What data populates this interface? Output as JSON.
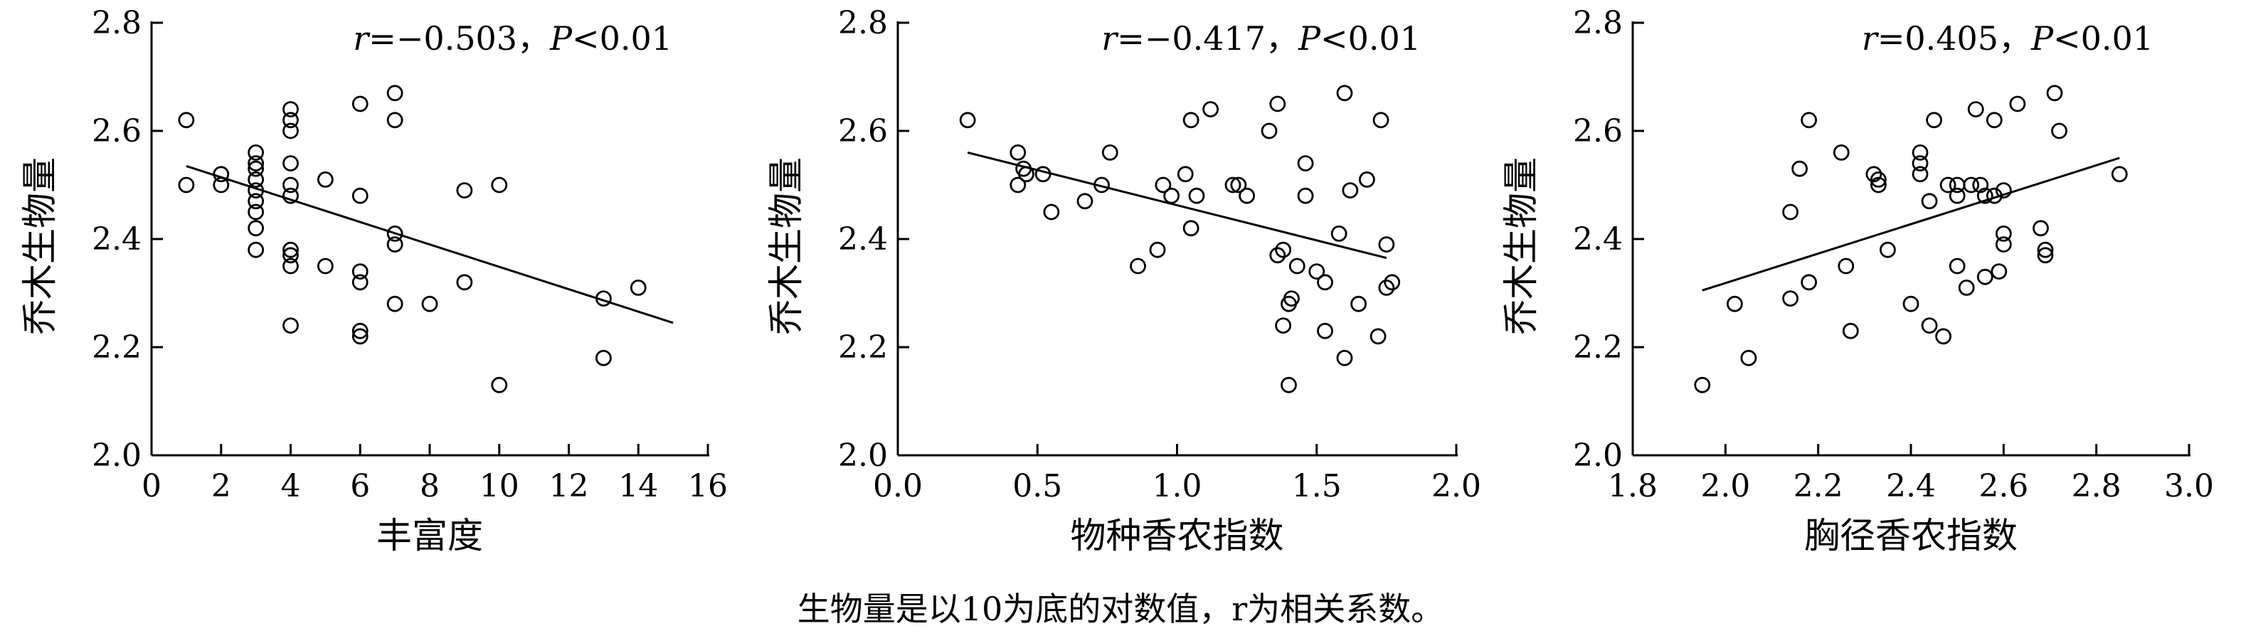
{
  "caption": "生物量是以10为底的对数值，r为相关系数。",
  "chart_data": [
    {
      "type": "scatter",
      "xlabel": "丰富度",
      "ylabel": "乔木生物量",
      "xlim": [
        0,
        16
      ],
      "ylim": [
        2.0,
        2.8
      ],
      "xticks": [
        0,
        2,
        4,
        6,
        8,
        10,
        12,
        14,
        16
      ],
      "yticks": [
        2.0,
        2.2,
        2.4,
        2.6,
        2.8
      ],
      "xdecimals": 0,
      "ydecimals": 1,
      "stat": {
        "r_symbol": "r",
        "r_text": "=−0.503，",
        "p_symbol": "P",
        "p_text": "<0.01"
      },
      "fit_line": [
        [
          1,
          2.535
        ],
        [
          15,
          2.245
        ]
      ],
      "points": [
        [
          1,
          2.62
        ],
        [
          1,
          2.5
        ],
        [
          2,
          2.52
        ],
        [
          2,
          2.5
        ],
        [
          3,
          2.56
        ],
        [
          3,
          2.53
        ],
        [
          3,
          2.51
        ],
        [
          3,
          2.49
        ],
        [
          3,
          2.47
        ],
        [
          3,
          2.45
        ],
        [
          3,
          2.42
        ],
        [
          3,
          2.38
        ],
        [
          3,
          2.54
        ],
        [
          4,
          2.64
        ],
        [
          4,
          2.62
        ],
        [
          4,
          2.6
        ],
        [
          4,
          2.54
        ],
        [
          4,
          2.5
        ],
        [
          4,
          2.48
        ],
        [
          4,
          2.38
        ],
        [
          4,
          2.37
        ],
        [
          4,
          2.35
        ],
        [
          4,
          2.24
        ],
        [
          5,
          2.51
        ],
        [
          5,
          2.35
        ],
        [
          6,
          2.65
        ],
        [
          6,
          2.48
        ],
        [
          6,
          2.34
        ],
        [
          6,
          2.32
        ],
        [
          6,
          2.23
        ],
        [
          6,
          2.22
        ],
        [
          7,
          2.67
        ],
        [
          7,
          2.62
        ],
        [
          7,
          2.41
        ],
        [
          7,
          2.39
        ],
        [
          7,
          2.28
        ],
        [
          8,
          2.28
        ],
        [
          9,
          2.49
        ],
        [
          9,
          2.32
        ],
        [
          10,
          2.5
        ],
        [
          10,
          2.13
        ],
        [
          13,
          2.29
        ],
        [
          13,
          2.18
        ],
        [
          14,
          2.31
        ]
      ]
    },
    {
      "type": "scatter",
      "xlabel": "物种香农指数",
      "ylabel": "乔木生物量",
      "xlim": [
        0,
        2.0
      ],
      "ylim": [
        2.0,
        2.8
      ],
      "xticks": [
        0,
        0.5,
        1.0,
        1.5,
        2.0
      ],
      "yticks": [
        2.0,
        2.2,
        2.4,
        2.6,
        2.8
      ],
      "xdecimals": 1,
      "ydecimals": 1,
      "stat": {
        "r_symbol": "r",
        "r_text": "=−0.417，",
        "p_symbol": "P",
        "p_text": "<0.01"
      },
      "fit_line": [
        [
          0.25,
          2.56
        ],
        [
          1.75,
          2.365
        ]
      ],
      "points": [
        [
          0.25,
          2.62
        ],
        [
          0.43,
          2.56
        ],
        [
          0.43,
          2.5
        ],
        [
          0.45,
          2.53
        ],
        [
          0.46,
          2.52
        ],
        [
          0.52,
          2.52
        ],
        [
          0.55,
          2.45
        ],
        [
          0.67,
          2.47
        ],
        [
          0.73,
          2.5
        ],
        [
          0.76,
          2.56
        ],
        [
          0.86,
          2.35
        ],
        [
          0.93,
          2.38
        ],
        [
          0.95,
          2.5
        ],
        [
          0.98,
          2.48
        ],
        [
          1.03,
          2.52
        ],
        [
          1.05,
          2.62
        ],
        [
          1.05,
          2.42
        ],
        [
          1.07,
          2.48
        ],
        [
          1.12,
          2.64
        ],
        [
          1.2,
          2.5
        ],
        [
          1.22,
          2.5
        ],
        [
          1.25,
          2.48
        ],
        [
          1.33,
          2.6
        ],
        [
          1.36,
          2.65
        ],
        [
          1.36,
          2.37
        ],
        [
          1.38,
          2.38
        ],
        [
          1.38,
          2.24
        ],
        [
          1.4,
          2.28
        ],
        [
          1.41,
          2.29
        ],
        [
          1.4,
          2.13
        ],
        [
          1.43,
          2.35
        ],
        [
          1.46,
          2.54
        ],
        [
          1.46,
          2.48
        ],
        [
          1.5,
          2.34
        ],
        [
          1.53,
          2.32
        ],
        [
          1.53,
          2.23
        ],
        [
          1.58,
          2.41
        ],
        [
          1.6,
          2.67
        ],
        [
          1.6,
          2.18
        ],
        [
          1.62,
          2.49
        ],
        [
          1.65,
          2.28
        ],
        [
          1.68,
          2.51
        ],
        [
          1.72,
          2.22
        ],
        [
          1.73,
          2.62
        ],
        [
          1.75,
          2.39
        ],
        [
          1.75,
          2.31
        ],
        [
          1.77,
          2.32
        ]
      ]
    },
    {
      "type": "scatter",
      "xlabel": "胸径香农指数",
      "ylabel": "乔木生物量",
      "xlim": [
        1.8,
        3.0
      ],
      "ylim": [
        2.0,
        2.8
      ],
      "xticks": [
        1.8,
        2.0,
        2.2,
        2.4,
        2.6,
        2.8,
        3.0
      ],
      "yticks": [
        2.0,
        2.2,
        2.4,
        2.6,
        2.8
      ],
      "xdecimals": 1,
      "ydecimals": 1,
      "stat": {
        "r_symbol": "r",
        "r_text": "=0.405，",
        "p_symbol": "P",
        "p_text": "<0.01"
      },
      "fit_line": [
        [
          1.95,
          2.305
        ],
        [
          2.85,
          2.55
        ]
      ],
      "points": [
        [
          1.95,
          2.13
        ],
        [
          2.02,
          2.28
        ],
        [
          2.05,
          2.18
        ],
        [
          2.14,
          2.45
        ],
        [
          2.14,
          2.29
        ],
        [
          2.16,
          2.53
        ],
        [
          2.18,
          2.62
        ],
        [
          2.18,
          2.32
        ],
        [
          2.25,
          2.56
        ],
        [
          2.26,
          2.35
        ],
        [
          2.27,
          2.23
        ],
        [
          2.32,
          2.52
        ],
        [
          2.33,
          2.51
        ],
        [
          2.33,
          2.5
        ],
        [
          2.35,
          2.38
        ],
        [
          2.4,
          2.28
        ],
        [
          2.42,
          2.56
        ],
        [
          2.42,
          2.54
        ],
        [
          2.42,
          2.52
        ],
        [
          2.44,
          2.47
        ],
        [
          2.44,
          2.24
        ],
        [
          2.45,
          2.62
        ],
        [
          2.47,
          2.22
        ],
        [
          2.48,
          2.5
        ],
        [
          2.5,
          2.5
        ],
        [
          2.5,
          2.48
        ],
        [
          2.5,
          2.35
        ],
        [
          2.52,
          2.31
        ],
        [
          2.53,
          2.5
        ],
        [
          2.54,
          2.64
        ],
        [
          2.55,
          2.5
        ],
        [
          2.56,
          2.48
        ],
        [
          2.56,
          2.33
        ],
        [
          2.58,
          2.62
        ],
        [
          2.58,
          2.48
        ],
        [
          2.59,
          2.34
        ],
        [
          2.6,
          2.49
        ],
        [
          2.6,
          2.41
        ],
        [
          2.6,
          2.39
        ],
        [
          2.63,
          2.65
        ],
        [
          2.68,
          2.42
        ],
        [
          2.69,
          2.38
        ],
        [
          2.69,
          2.37
        ],
        [
          2.71,
          2.67
        ],
        [
          2.72,
          2.6
        ],
        [
          2.85,
          2.52
        ]
      ]
    }
  ]
}
